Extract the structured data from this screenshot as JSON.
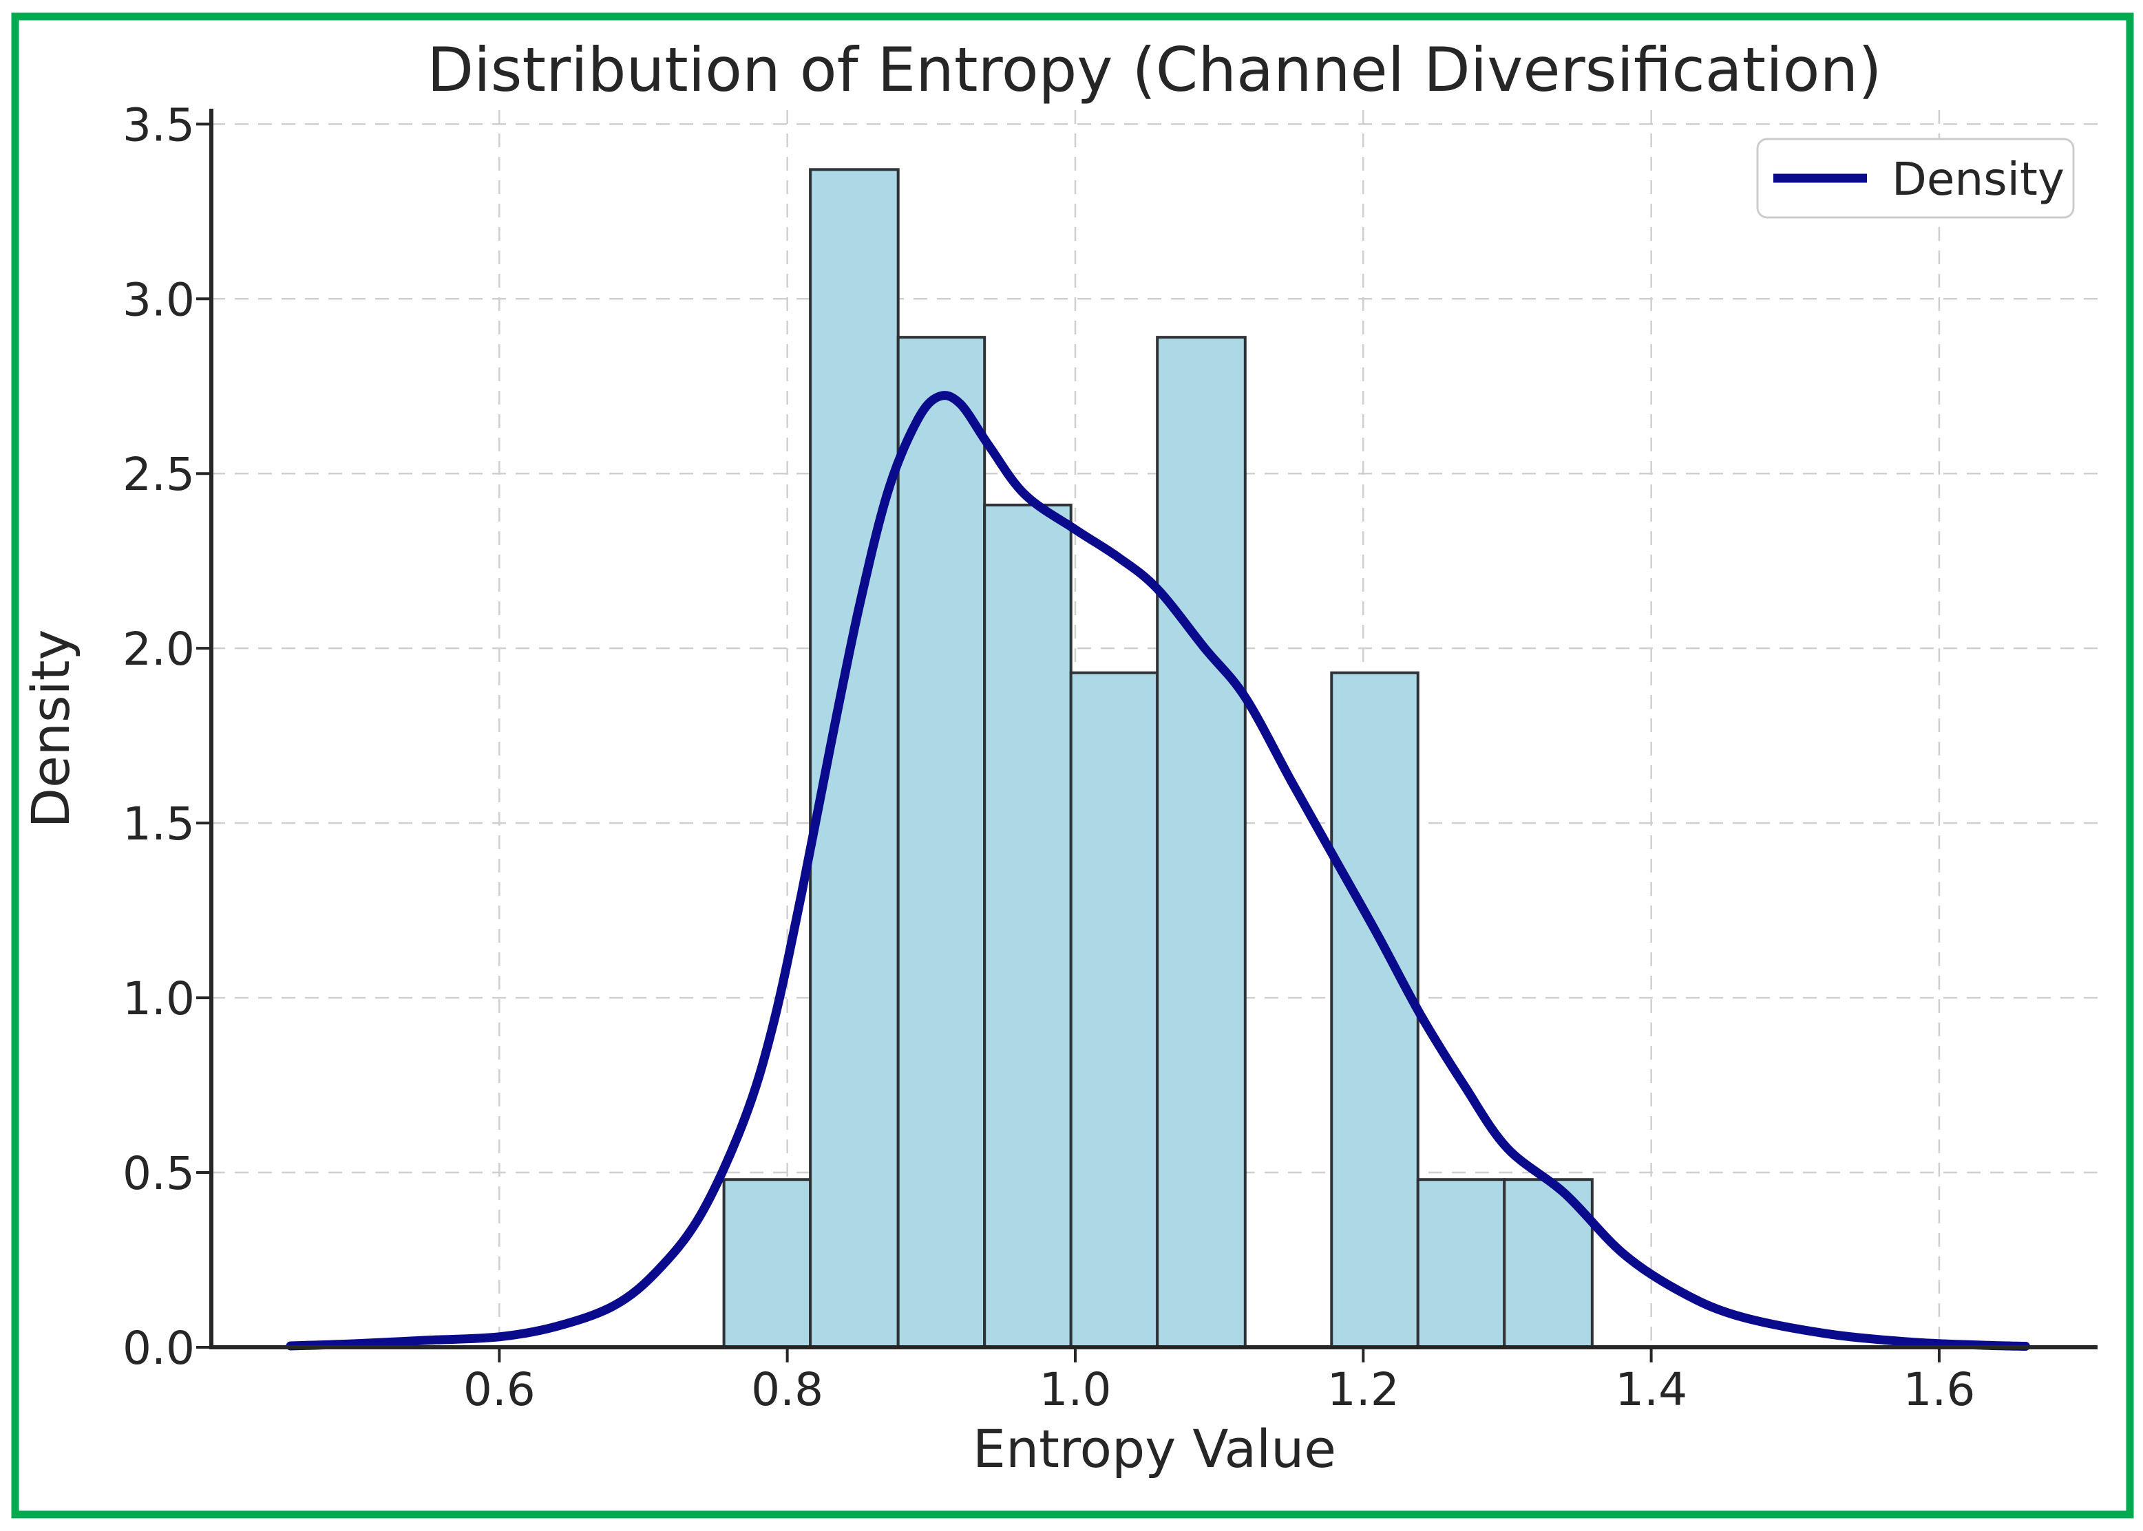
{
  "chart_data": {
    "type": "histogram+kde",
    "title": "Distribution of Entropy (Channel Diversification)",
    "xlabel": "Entropy Value",
    "ylabel": "Density",
    "legend": {
      "label": "Density",
      "position": "upper right"
    },
    "x_ticks": [
      "0.6",
      "0.8",
      "1.0",
      "1.2",
      "1.4",
      "1.6"
    ],
    "x_tick_values": [
      0.6,
      0.8,
      1.0,
      1.2,
      1.4,
      1.6
    ],
    "y_ticks": [
      "0.0",
      "0.5",
      "1.0",
      "1.5",
      "2.0",
      "2.5",
      "3.0",
      "3.5"
    ],
    "y_tick_values": [
      0.0,
      0.5,
      1.0,
      1.5,
      2.0,
      2.5,
      3.0,
      3.5
    ],
    "xlim": [
      0.4,
      1.71
    ],
    "ylim": [
      0,
      3.54
    ],
    "grid": {
      "style": "dashed",
      "color": "#cfcfcf"
    },
    "histogram": {
      "bin_edges": [
        0.756,
        0.816,
        0.877,
        0.937,
        0.997,
        1.057,
        1.118,
        1.178,
        1.238,
        1.298,
        1.359
      ],
      "densities": [
        0.48,
        3.37,
        2.89,
        2.41,
        1.93,
        2.89,
        0,
        1.93,
        0.48,
        0.48
      ],
      "bar_fill": "#ADD8E6",
      "bar_edge": "#2F3237"
    },
    "kde": {
      "color": "#0A0A8C",
      "points": [
        [
          0.455,
          0.004
        ],
        [
          0.5,
          0.01
        ],
        [
          0.55,
          0.02
        ],
        [
          0.6,
          0.03
        ],
        [
          0.64,
          0.06
        ],
        [
          0.68,
          0.12
        ],
        [
          0.71,
          0.22
        ],
        [
          0.74,
          0.38
        ],
        [
          0.77,
          0.65
        ],
        [
          0.79,
          0.92
        ],
        [
          0.81,
          1.3
        ],
        [
          0.83,
          1.72
        ],
        [
          0.85,
          2.12
        ],
        [
          0.87,
          2.45
        ],
        [
          0.89,
          2.65
        ],
        [
          0.905,
          2.72
        ],
        [
          0.92,
          2.7
        ],
        [
          0.94,
          2.58
        ],
        [
          0.965,
          2.44
        ],
        [
          1.0,
          2.34
        ],
        [
          1.03,
          2.26
        ],
        [
          1.057,
          2.17
        ],
        [
          1.09,
          2.0
        ],
        [
          1.118,
          1.86
        ],
        [
          1.15,
          1.62
        ],
        [
          1.18,
          1.4
        ],
        [
          1.21,
          1.18
        ],
        [
          1.24,
          0.95
        ],
        [
          1.27,
          0.75
        ],
        [
          1.3,
          0.57
        ],
        [
          1.34,
          0.44
        ],
        [
          1.38,
          0.27
        ],
        [
          1.42,
          0.16
        ],
        [
          1.46,
          0.09
        ],
        [
          1.52,
          0.04
        ],
        [
          1.58,
          0.015
        ],
        [
          1.63,
          0.006
        ],
        [
          1.66,
          0.003
        ]
      ]
    },
    "frame_color": "#00AB50",
    "text_color": "#262626",
    "spine_color": "#262626"
  }
}
